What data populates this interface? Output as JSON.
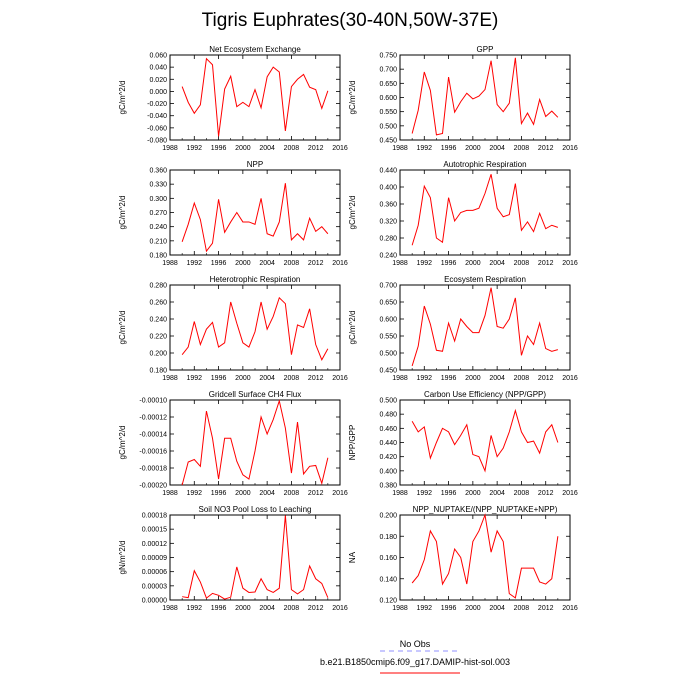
{
  "title": "Tigris Euphrates(30-40N,50W-37E)",
  "legend": {
    "items": [
      {
        "label": "No Obs",
        "color": "#9090ff",
        "dash": true
      },
      {
        "label": "b.e21.B1850cmip6.f09_g17.DAMIP-hist-sol.003",
        "color": "#ff0000",
        "dash": false
      }
    ]
  },
  "chart_data": [
    {
      "type": "line",
      "title": "Net Ecosystem Exchange",
      "ylabel": "gC/m^2/d",
      "xlim": [
        1988,
        2016
      ],
      "xticks": [
        "1988",
        "1992",
        "1996",
        "2000",
        "2004",
        "2008",
        "2012",
        "2016"
      ],
      "ylim": [
        -0.08,
        0.06
      ],
      "yticks": [
        "-0.080",
        "-0.060",
        "-0.040",
        "-0.020",
        "0.000",
        "0.020",
        "0.040",
        "0.060"
      ],
      "x": [
        1990,
        1991,
        1992,
        1993,
        1994,
        1995,
        1996,
        1997,
        1998,
        1999,
        2000,
        2001,
        2002,
        2003,
        2004,
        2005,
        2006,
        2007,
        2008,
        2009,
        2010,
        2011,
        2012,
        2013,
        2014
      ],
      "series": [
        {
          "color": "#ff0000",
          "values": [
            0.008,
            -0.018,
            -0.036,
            -0.022,
            0.054,
            0.044,
            -0.074,
            0.004,
            0.025,
            -0.025,
            -0.018,
            -0.025,
            0.003,
            -0.027,
            0.024,
            0.04,
            0.032,
            -0.065,
            0.008,
            0.02,
            0.028,
            0.007,
            0.003,
            -0.028,
            0.001
          ]
        }
      ]
    },
    {
      "type": "line",
      "title": "GPP",
      "ylabel": "gC/m^2/d",
      "xlim": [
        1988,
        2016
      ],
      "xticks": [
        "1988",
        "1992",
        "1996",
        "2000",
        "2004",
        "2008",
        "2012",
        "2016"
      ],
      "ylim": [
        0.45,
        0.75
      ],
      "yticks": [
        "0.450",
        "0.500",
        "0.550",
        "0.600",
        "0.650",
        "0.700",
        "0.750"
      ],
      "x": [
        1990,
        1991,
        1992,
        1993,
        1994,
        1995,
        1996,
        1997,
        1998,
        1999,
        2000,
        2001,
        2002,
        2003,
        2004,
        2005,
        2006,
        2007,
        2008,
        2009,
        2010,
        2011,
        2012,
        2013,
        2014
      ],
      "series": [
        {
          "color": "#ff0000",
          "values": [
            0.473,
            0.555,
            0.69,
            0.625,
            0.468,
            0.473,
            0.672,
            0.548,
            0.585,
            0.615,
            0.595,
            0.605,
            0.628,
            0.73,
            0.575,
            0.55,
            0.58,
            0.74,
            0.508,
            0.545,
            0.505,
            0.593,
            0.533,
            0.552,
            0.53
          ]
        }
      ]
    },
    {
      "type": "line",
      "title": "NPP",
      "ylabel": "gC/m^2/d",
      "xlim": [
        1988,
        2016
      ],
      "xticks": [
        "1988",
        "1992",
        "1996",
        "2000",
        "2004",
        "2008",
        "2012",
        "2016"
      ],
      "ylim": [
        0.18,
        0.36
      ],
      "yticks": [
        "0.180",
        "0.210",
        "0.240",
        "0.270",
        "0.300",
        "0.330",
        "0.360"
      ],
      "x": [
        1990,
        1991,
        1992,
        1993,
        1994,
        1995,
        1996,
        1997,
        1998,
        1999,
        2000,
        2001,
        2002,
        2003,
        2004,
        2005,
        2006,
        2007,
        2008,
        2009,
        2010,
        2011,
        2012,
        2013,
        2014
      ],
      "series": [
        {
          "color": "#ff0000",
          "values": [
            0.208,
            0.245,
            0.29,
            0.255,
            0.188,
            0.205,
            0.298,
            0.228,
            0.25,
            0.27,
            0.25,
            0.25,
            0.245,
            0.3,
            0.225,
            0.22,
            0.25,
            0.332,
            0.212,
            0.225,
            0.212,
            0.258,
            0.23,
            0.24,
            0.225
          ]
        }
      ]
    },
    {
      "type": "line",
      "title": "Autotrophic Respiration",
      "ylabel": "gC/m^2/d",
      "xlim": [
        1988,
        2016
      ],
      "xticks": [
        "1988",
        "1992",
        "1996",
        "2000",
        "2004",
        "2008",
        "2012",
        "2016"
      ],
      "ylim": [
        0.24,
        0.44
      ],
      "yticks": [
        "0.240",
        "0.280",
        "0.320",
        "0.360",
        "0.400",
        "0.440"
      ],
      "x": [
        1990,
        1991,
        1992,
        1993,
        1994,
        1995,
        1996,
        1997,
        1998,
        1999,
        2000,
        2001,
        2002,
        2003,
        2004,
        2005,
        2006,
        2007,
        2008,
        2009,
        2010,
        2011,
        2012,
        2013,
        2014
      ],
      "series": [
        {
          "color": "#ff0000",
          "values": [
            0.263,
            0.31,
            0.402,
            0.375,
            0.28,
            0.27,
            0.375,
            0.32,
            0.34,
            0.345,
            0.345,
            0.35,
            0.385,
            0.43,
            0.35,
            0.33,
            0.335,
            0.408,
            0.298,
            0.318,
            0.295,
            0.338,
            0.302,
            0.31,
            0.305
          ]
        }
      ]
    },
    {
      "type": "line",
      "title": "Heterotrophic Respiration",
      "ylabel": "gC/m^2/d",
      "xlim": [
        1988,
        2016
      ],
      "xticks": [
        "1988",
        "1992",
        "1996",
        "2000",
        "2004",
        "2008",
        "2012",
        "2016"
      ],
      "ylim": [
        0.18,
        0.28
      ],
      "yticks": [
        "0.180",
        "0.200",
        "0.220",
        "0.240",
        "0.260",
        "0.280"
      ],
      "x": [
        1990,
        1991,
        1992,
        1993,
        1994,
        1995,
        1996,
        1997,
        1998,
        1999,
        2000,
        2001,
        2002,
        2003,
        2004,
        2005,
        2006,
        2007,
        2008,
        2009,
        2010,
        2011,
        2012,
        2013,
        2014
      ],
      "series": [
        {
          "color": "#ff0000",
          "values": [
            0.198,
            0.207,
            0.237,
            0.21,
            0.228,
            0.236,
            0.207,
            0.212,
            0.26,
            0.235,
            0.212,
            0.207,
            0.225,
            0.26,
            0.228,
            0.243,
            0.265,
            0.258,
            0.198,
            0.233,
            0.23,
            0.252,
            0.21,
            0.192,
            0.205
          ]
        }
      ]
    },
    {
      "type": "line",
      "title": "Ecosystem Respiration",
      "ylabel": "gC/m^2/d",
      "xlim": [
        1988,
        2016
      ],
      "xticks": [
        "1988",
        "1992",
        "1996",
        "2000",
        "2004",
        "2008",
        "2012",
        "2016"
      ],
      "ylim": [
        0.45,
        0.7
      ],
      "yticks": [
        "0.450",
        "0.500",
        "0.550",
        "0.600",
        "0.650",
        "0.700"
      ],
      "x": [
        1990,
        1991,
        1992,
        1993,
        1994,
        1995,
        1996,
        1997,
        1998,
        1999,
        2000,
        2001,
        2002,
        2003,
        2004,
        2005,
        2006,
        2007,
        2008,
        2009,
        2010,
        2011,
        2012,
        2013,
        2014
      ],
      "series": [
        {
          "color": "#ff0000",
          "values": [
            0.462,
            0.52,
            0.638,
            0.585,
            0.508,
            0.505,
            0.588,
            0.535,
            0.6,
            0.578,
            0.56,
            0.56,
            0.61,
            0.692,
            0.578,
            0.573,
            0.6,
            0.662,
            0.493,
            0.55,
            0.525,
            0.588,
            0.513,
            0.505,
            0.51
          ]
        }
      ]
    },
    {
      "type": "line",
      "title": "Gridcell Surface CH4 Flux",
      "ylabel": "gC/m^2/d",
      "xlim": [
        1988,
        2016
      ],
      "xticks": [
        "1988",
        "1992",
        "1996",
        "2000",
        "2004",
        "2008",
        "2012",
        "2016"
      ],
      "ylim": [
        -0.0002,
        -0.0001
      ],
      "yticks": [
        "-0.00020",
        "-0.00018",
        "-0.00016",
        "-0.00014",
        "-0.00012",
        "-0.00010"
      ],
      "x": [
        1990,
        1991,
        1992,
        1993,
        1994,
        1995,
        1996,
        1997,
        1998,
        1999,
        2000,
        2001,
        2002,
        2003,
        2004,
        2005,
        2006,
        2007,
        2008,
        2009,
        2010,
        2011,
        2012,
        2013,
        2014
      ],
      "series": [
        {
          "color": "#ff0000",
          "values": [
            -0.0002,
            -0.000173,
            -0.00017,
            -0.000178,
            -0.000113,
            -0.000145,
            -0.000193,
            -0.000145,
            -0.000145,
            -0.000172,
            -0.000188,
            -0.000193,
            -0.00016,
            -0.00012,
            -0.00014,
            -0.000123,
            -0.000101,
            -0.000133,
            -0.000186,
            -0.000126,
            -0.000187,
            -0.000178,
            -0.000177,
            -0.000198,
            -0.000168
          ]
        }
      ]
    },
    {
      "type": "line",
      "title": "Carbon Use Efficiency (NPP/GPP)",
      "ylabel": "NPP/GPP",
      "xlim": [
        1988,
        2016
      ],
      "xticks": [
        "1988",
        "1992",
        "1996",
        "2000",
        "2004",
        "2008",
        "2012",
        "2016"
      ],
      "ylim": [
        0.38,
        0.5
      ],
      "yticks": [
        "0.380",
        "0.400",
        "0.420",
        "0.440",
        "0.460",
        "0.480",
        "0.500"
      ],
      "x": [
        1990,
        1991,
        1992,
        1993,
        1994,
        1995,
        1996,
        1997,
        1998,
        1999,
        2000,
        2001,
        2002,
        2003,
        2004,
        2005,
        2006,
        2007,
        2008,
        2009,
        2010,
        2011,
        2012,
        2013,
        2014
      ],
      "series": [
        {
          "color": "#ff0000",
          "values": [
            0.47,
            0.455,
            0.462,
            0.418,
            0.44,
            0.46,
            0.455,
            0.437,
            0.45,
            0.465,
            0.423,
            0.42,
            0.4,
            0.45,
            0.42,
            0.432,
            0.455,
            0.485,
            0.455,
            0.44,
            0.442,
            0.425,
            0.455,
            0.465,
            0.44
          ]
        }
      ]
    },
    {
      "type": "line",
      "title": "Soil NO3 Pool Loss to Leaching",
      "ylabel": "gN/m^2/d",
      "xlim": [
        1988,
        2016
      ],
      "xticks": [
        "1988",
        "1992",
        "1996",
        "2000",
        "2004",
        "2008",
        "2012",
        "2016"
      ],
      "ylim": [
        0,
        0.00018
      ],
      "yticks": [
        "0.00000",
        "0.00003",
        "0.00006",
        "0.00009",
        "0.00012",
        "0.00015",
        "0.00018"
      ],
      "x": [
        1990,
        1991,
        1992,
        1993,
        1994,
        1995,
        1996,
        1997,
        1998,
        1999,
        2000,
        2001,
        2002,
        2003,
        2004,
        2005,
        2006,
        2007,
        2008,
        2009,
        2010,
        2011,
        2012,
        2013,
        2014
      ],
      "series": [
        {
          "color": "#ff0000",
          "values": [
            7e-06,
            5e-06,
            6.2e-05,
            3.8e-05,
            4e-06,
            1.4e-05,
            1e-05,
            2e-06,
            6e-06,
            7e-05,
            2.5e-05,
            1.6e-05,
            1.7e-05,
            4.5e-05,
            2.2e-05,
            1.6e-05,
            2.5e-05,
            0.000179,
            2.2e-05,
            1.3e-05,
            2.2e-05,
            7.2e-05,
            4.5e-05,
            3.5e-05,
            5e-06
          ]
        }
      ]
    },
    {
      "type": "line",
      "title": "NPP_NUPTAKE/(NPP_NUPTAKE+NPP)",
      "ylabel": "NA",
      "xlim": [
        1988,
        2016
      ],
      "xticks": [
        "1988",
        "1992",
        "1996",
        "2000",
        "2004",
        "2008",
        "2012",
        "2016"
      ],
      "ylim": [
        0.12,
        0.2
      ],
      "yticks": [
        "0.120",
        "0.140",
        "0.160",
        "0.180",
        "0.200"
      ],
      "x": [
        1990,
        1991,
        1992,
        1993,
        1994,
        1995,
        1996,
        1997,
        1998,
        1999,
        2000,
        2001,
        2002,
        2003,
        2004,
        2005,
        2006,
        2007,
        2008,
        2009,
        2010,
        2011,
        2012,
        2013,
        2014
      ],
      "series": [
        {
          "color": "#ff0000",
          "values": [
            0.136,
            0.143,
            0.158,
            0.185,
            0.175,
            0.135,
            0.145,
            0.168,
            0.16,
            0.135,
            0.175,
            0.185,
            0.2,
            0.165,
            0.185,
            0.175,
            0.126,
            0.122,
            0.15,
            0.15,
            0.15,
            0.137,
            0.135,
            0.14,
            0.18
          ]
        }
      ]
    }
  ]
}
